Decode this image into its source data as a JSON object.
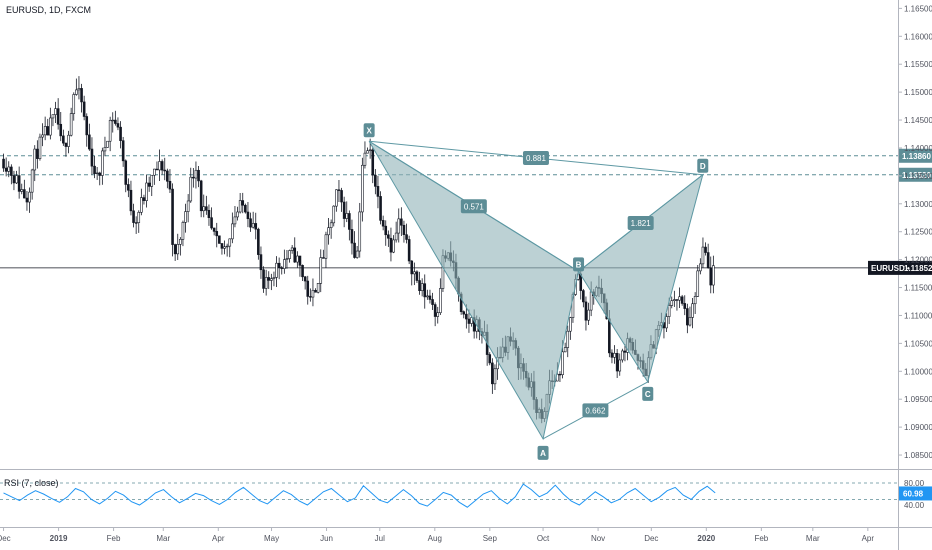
{
  "header": {
    "symbol_label": "EURUSD, 1D, FXCM"
  },
  "rsi_panel": {
    "label": "RSI (7, close)",
    "value": "60.98",
    "upper": "80.00",
    "lower": "40.00"
  },
  "colors": {
    "candle": "#131722",
    "pattern_fill": "#8fb2b8",
    "pattern_line": "#5d98a3",
    "label_bg": "#5d8d96",
    "level_line": "#5d8d96",
    "price_line": "#131722",
    "rsi_line": "#2196f3",
    "rsi_level": "#5d8d96",
    "axis_text": "#50535e"
  },
  "chart_data": {
    "type": "candlestick",
    "symbol": "EURUSD",
    "interval": "1D",
    "source": "FXCM",
    "x_labels": [
      "Dec",
      "2019",
      "Feb",
      "Mar",
      "Apr",
      "May",
      "Jun",
      "Jul",
      "Aug",
      "Sep",
      "Oct",
      "Nov",
      "Dec",
      "2020",
      "Feb",
      "Mar",
      "Apr"
    ],
    "y_ticks": [
      "1.16500",
      "1.16000",
      "1.15500",
      "1.15000",
      "1.14500",
      "1.14000",
      "1.13500",
      "1.13000",
      "1.12500",
      "1.12000",
      "1.11500",
      "1.11000",
      "1.10500",
      "1.10000",
      "1.09500",
      "1.09000",
      "1.08500"
    ],
    "ylim": [
      1.0825,
      1.1665
    ],
    "current_price": {
      "label": "EURUSD",
      "value": "1.11852"
    },
    "levels": [
      "1.13860",
      "1.13520"
    ],
    "harmonic_points": [
      {
        "name": "X",
        "date": "2019-06-25",
        "price": 1.1412
      },
      {
        "name": "A",
        "date": "2019-10-01",
        "price": 1.0879
      },
      {
        "name": "B",
        "date": "2019-10-21",
        "price": 1.1179
      },
      {
        "name": "C",
        "date": "2019-11-29",
        "price": 1.0981
      },
      {
        "name": "D",
        "date": "2019-12-30",
        "price": 1.1352
      }
    ],
    "ratios": [
      {
        "between": "XA-AB",
        "value": "0.571"
      },
      {
        "between": "AB-BC",
        "value": "0.662"
      },
      {
        "between": "BC-CD",
        "value": "1.821"
      },
      {
        "between": "XA-XD",
        "value": "0.881"
      }
    ],
    "price_path": [
      [
        "2018-12-01",
        1.138
      ],
      [
        "2018-12-05",
        1.136
      ],
      [
        "2018-12-10",
        1.133
      ],
      [
        "2018-12-14",
        1.131
      ],
      [
        "2018-12-19",
        1.139
      ],
      [
        "2018-12-24",
        1.142
      ],
      [
        "2018-12-31",
        1.146
      ],
      [
        "2019-01-03",
        1.139
      ],
      [
        "2019-01-07",
        1.144
      ],
      [
        "2019-01-10",
        1.151
      ],
      [
        "2019-01-14",
        1.148
      ],
      [
        "2019-01-18",
        1.14
      ],
      [
        "2019-01-23",
        1.134
      ],
      [
        "2019-01-28",
        1.142
      ],
      [
        "2019-01-31",
        1.146
      ],
      [
        "2019-02-05",
        1.142
      ],
      [
        "2019-02-08",
        1.133
      ],
      [
        "2019-02-13",
        1.127
      ],
      [
        "2019-02-19",
        1.132
      ],
      [
        "2019-02-25",
        1.136
      ],
      [
        "2019-03-01",
        1.137
      ],
      [
        "2019-03-05",
        1.132
      ],
      [
        "2019-03-07",
        1.119
      ],
      [
        "2019-03-12",
        1.126
      ],
      [
        "2019-03-15",
        1.132
      ],
      [
        "2019-03-20",
        1.138
      ],
      [
        "2019-03-22",
        1.13
      ],
      [
        "2019-03-27",
        1.126
      ],
      [
        "2019-04-01",
        1.122
      ],
      [
        "2019-04-05",
        1.122
      ],
      [
        "2019-04-10",
        1.128
      ],
      [
        "2019-04-16",
        1.13
      ],
      [
        "2019-04-22",
        1.125
      ],
      [
        "2019-04-26",
        1.114
      ],
      [
        "2019-05-02",
        1.118
      ],
      [
        "2019-05-08",
        1.12
      ],
      [
        "2019-05-14",
        1.121
      ],
      [
        "2019-05-20",
        1.116
      ],
      [
        "2019-05-23",
        1.112
      ],
      [
        "2019-05-28",
        1.118
      ],
      [
        "2019-06-03",
        1.126
      ],
      [
        "2019-06-07",
        1.132
      ],
      [
        "2019-06-13",
        1.127
      ],
      [
        "2019-06-18",
        1.12
      ],
      [
        "2019-06-21",
        1.137
      ],
      [
        "2019-06-25",
        1.14
      ],
      [
        "2019-07-01",
        1.129
      ],
      [
        "2019-07-08",
        1.122
      ],
      [
        "2019-07-12",
        1.127
      ],
      [
        "2019-07-17",
        1.121
      ],
      [
        "2019-07-23",
        1.115
      ],
      [
        "2019-07-30",
        1.113
      ],
      [
        "2019-08-02",
        1.11
      ],
      [
        "2019-08-06",
        1.121
      ],
      [
        "2019-08-12",
        1.119
      ],
      [
        "2019-08-16",
        1.109
      ],
      [
        "2019-08-22",
        1.109
      ],
      [
        "2019-08-28",
        1.107
      ],
      [
        "2019-09-03",
        1.098
      ],
      [
        "2019-09-06",
        1.103
      ],
      [
        "2019-09-12",
        1.106
      ],
      [
        "2019-09-17",
        1.102
      ],
      [
        "2019-09-23",
        1.098
      ],
      [
        "2019-09-27",
        1.094
      ],
      [
        "2019-10-01",
        1.09
      ],
      [
        "2019-10-04",
        1.098
      ],
      [
        "2019-10-09",
        1.099
      ],
      [
        "2019-10-14",
        1.104
      ],
      [
        "2019-10-18",
        1.115
      ],
      [
        "2019-10-21",
        1.117
      ],
      [
        "2019-10-25",
        1.11
      ],
      [
        "2019-10-30",
        1.115
      ],
      [
        "2019-11-04",
        1.114
      ],
      [
        "2019-11-08",
        1.103
      ],
      [
        "2019-11-13",
        1.101
      ],
      [
        "2019-11-18",
        1.107
      ],
      [
        "2019-11-22",
        1.102
      ],
      [
        "2019-11-27",
        1.1
      ],
      [
        "2019-11-29",
        1.101
      ],
      [
        "2019-12-04",
        1.108
      ],
      [
        "2019-12-09",
        1.108
      ],
      [
        "2019-12-13",
        1.114
      ],
      [
        "2019-12-18",
        1.112
      ],
      [
        "2019-12-23",
        1.108
      ],
      [
        "2019-12-27",
        1.117
      ],
      [
        "2019-12-31",
        1.122
      ],
      [
        "2020-01-03",
        1.116
      ],
      [
        "2020-01-06",
        1.119
      ]
    ],
    "rsi_path": [
      62,
      55,
      48,
      58,
      66,
      60,
      52,
      45,
      55,
      70,
      64,
      50,
      42,
      52,
      65,
      58,
      46,
      40,
      50,
      62,
      68,
      55,
      44,
      52,
      61,
      57,
      48,
      41,
      50,
      63,
      72,
      60,
      48,
      42,
      54,
      66,
      59,
      47,
      40,
      52,
      64,
      70,
      58,
      46,
      53,
      75,
      62,
      49,
      44,
      56,
      68,
      57,
      43,
      38,
      50,
      63,
      58,
      45,
      36,
      48,
      60,
      66,
      52,
      42,
      55,
      78,
      68,
      55,
      62,
      76,
      60,
      47,
      40,
      52,
      64,
      55,
      44,
      50,
      62,
      70,
      58,
      46,
      54,
      66,
      72,
      58,
      50,
      65,
      74,
      62
    ]
  }
}
